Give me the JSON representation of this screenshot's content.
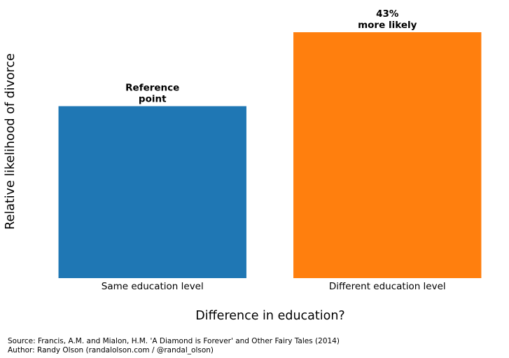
{
  "chart_data": {
    "type": "bar",
    "categories": [
      "Same education level",
      "Different education level"
    ],
    "values": [
      1.0,
      1.43
    ],
    "ylim": [
      0,
      1.43
    ],
    "colors": [
      "#1f77b4",
      "#ff7f0e"
    ],
    "bar_labels": [
      [
        "Reference",
        "point"
      ],
      [
        "43%",
        "more likely"
      ]
    ],
    "xlabel": "Difference in education?",
    "ylabel": "Relative likelihood of divorce",
    "grid": false,
    "axes_visible": false
  },
  "footer": {
    "source": "Source: Francis, A.M. and Mialon, H.M. 'A Diamond is Forever' and Other Fairy Tales (2014)",
    "author": "Author: Randy Olson (randalolson.com / @randal_olson)"
  }
}
